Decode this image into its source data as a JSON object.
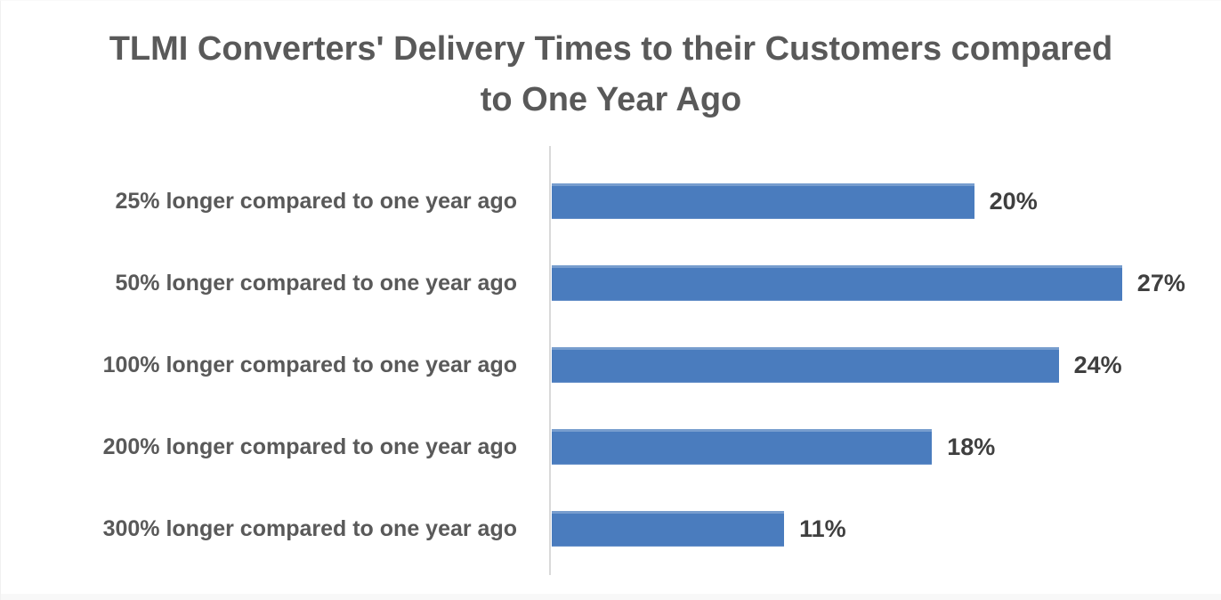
{
  "chart_data": {
    "type": "bar",
    "orientation": "horizontal",
    "title": "TLMI Converters' Delivery Times to their Customers compared to One Year Ago",
    "categories": [
      "25% longer compared to one year ago",
      "50% longer compared to one year ago",
      "100% longer compared to one year ago",
      "200% longer compared to one year ago",
      "300% longer compared to one year ago"
    ],
    "values": [
      20,
      27,
      24,
      18,
      11
    ],
    "data_labels": [
      "20%",
      "27%",
      "24%",
      "18%",
      "11%"
    ],
    "xlabel": "",
    "ylabel": "",
    "xlim": [
      0,
      30
    ],
    "grid": "off",
    "legend": "none",
    "axis_ticks_visible": false,
    "data_labels_position": "outside-end",
    "colors": {
      "bar": "#4A7CBE",
      "axis_line": "#D9D9D9",
      "title_text": "#595959",
      "category_text": "#595959",
      "value_text": "#3F3F3F",
      "background": "#FFFFFF"
    }
  }
}
